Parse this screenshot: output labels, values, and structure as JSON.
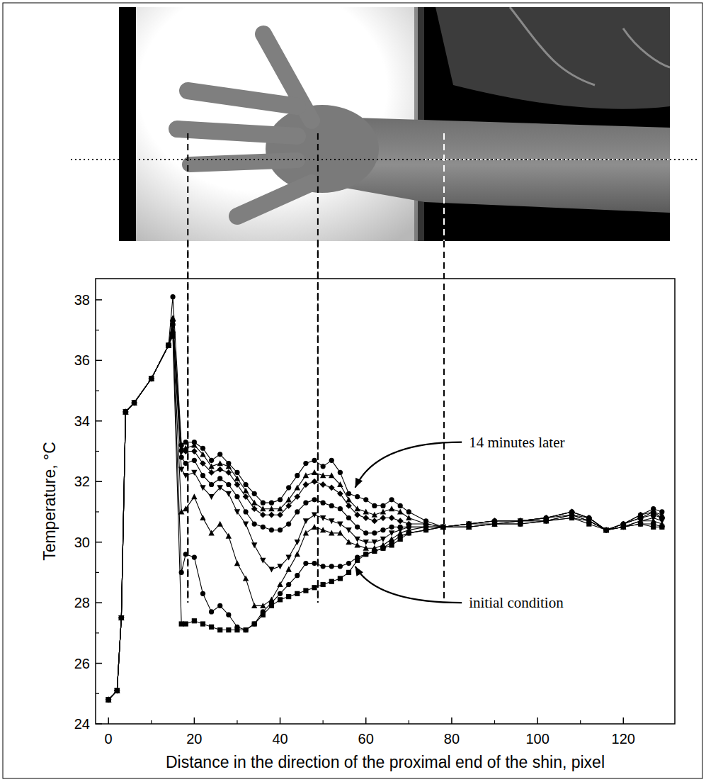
{
  "chart_data": {
    "type": "line",
    "x_label": "Distance in the direction of the proximal end of the shin, pixel",
    "y_label": "Temperature, °C",
    "x": [
      0,
      2,
      3,
      4,
      6,
      10,
      14,
      15,
      17,
      18,
      20,
      22,
      24,
      26,
      28,
      30,
      32,
      34,
      36,
      38,
      40,
      42,
      44,
      46,
      48,
      50,
      52,
      54,
      56,
      58,
      60,
      62,
      64,
      66,
      68,
      70,
      74,
      78,
      84,
      90,
      96,
      102,
      108,
      112,
      116,
      120,
      124,
      127,
      129
    ],
    "series": [
      {
        "color": "#000000",
        "marker": "square",
        "values": [
          24.8,
          25.1,
          27.5,
          34.3,
          34.6,
          35.4,
          36.5,
          36.8,
          27.3,
          27.3,
          27.4,
          27.3,
          27.2,
          27.1,
          27.1,
          27.1,
          27.1,
          27.3,
          27.6,
          27.9,
          28.1,
          28.2,
          28.3,
          28.4,
          28.5,
          28.6,
          28.7,
          28.8,
          29.0,
          29.4,
          29.6,
          29.7,
          29.8,
          29.9,
          30.1,
          30.3,
          30.4,
          30.5,
          30.5,
          30.6,
          30.6,
          30.7,
          30.8,
          30.6,
          30.4,
          30.5,
          30.6,
          30.5,
          30.5
        ]
      },
      {
        "color": "#000000",
        "marker": "circle",
        "values": [
          24.8,
          25.1,
          27.5,
          34.3,
          34.6,
          35.4,
          36.5,
          36.9,
          29.0,
          29.6,
          29.5,
          28.3,
          27.7,
          27.9,
          27.6,
          27.2,
          27.1,
          27.3,
          27.7,
          28.0,
          28.3,
          28.6,
          28.9,
          29.3,
          29.3,
          29.2,
          29.2,
          29.2,
          29.3,
          29.5,
          29.6,
          29.7,
          29.8,
          30.0,
          30.2,
          30.3,
          30.4,
          30.5,
          30.5,
          30.6,
          30.6,
          30.7,
          30.8,
          30.7,
          30.4,
          30.5,
          30.6,
          30.6,
          30.5
        ]
      },
      {
        "color": "#000000",
        "marker": "triangle-up",
        "values": [
          24.8,
          25.1,
          27.5,
          34.3,
          34.6,
          35.4,
          36.5,
          37.0,
          31.0,
          31.1,
          31.5,
          30.8,
          30.3,
          30.6,
          30.2,
          29.3,
          28.8,
          27.9,
          27.9,
          28.1,
          28.6,
          29.1,
          29.6,
          30.3,
          30.5,
          30.4,
          30.3,
          30.3,
          30.0,
          29.9,
          29.8,
          29.8,
          29.9,
          30.1,
          30.3,
          30.4,
          30.5,
          30.5,
          30.5,
          30.6,
          30.7,
          30.7,
          30.9,
          30.7,
          30.4,
          30.5,
          30.7,
          30.7,
          30.6
        ]
      },
      {
        "color": "#000000",
        "marker": "triangle-down",
        "values": [
          24.8,
          25.1,
          27.5,
          34.3,
          34.6,
          35.4,
          36.5,
          37.1,
          32.4,
          32.2,
          32.3,
          31.8,
          31.5,
          31.8,
          31.6,
          31.0,
          30.6,
          29.9,
          29.4,
          29.1,
          29.2,
          29.5,
          30.0,
          30.7,
          30.9,
          30.8,
          30.7,
          30.6,
          30.4,
          30.1,
          30.0,
          30.0,
          30.1,
          30.3,
          30.4,
          30.5,
          30.5,
          30.5,
          30.6,
          30.6,
          30.7,
          30.7,
          30.9,
          30.7,
          30.4,
          30.5,
          30.7,
          30.8,
          30.7
        ]
      },
      {
        "color": "#000000",
        "marker": "circle",
        "values": [
          24.8,
          25.1,
          27.5,
          34.3,
          34.6,
          35.4,
          36.5,
          37.2,
          32.8,
          32.6,
          32.7,
          32.2,
          31.9,
          32.1,
          31.9,
          31.5,
          31.0,
          30.6,
          30.5,
          30.4,
          30.4,
          30.6,
          31.0,
          31.3,
          31.4,
          31.3,
          31.2,
          31.1,
          30.8,
          30.5,
          30.3,
          30.3,
          30.4,
          30.5,
          30.5,
          30.5,
          30.5,
          30.5,
          30.6,
          30.7,
          30.7,
          30.8,
          30.9,
          30.8,
          30.4,
          30.6,
          30.8,
          30.9,
          30.8
        ]
      },
      {
        "color": "#000000",
        "marker": "diamond",
        "values": [
          24.8,
          25.1,
          27.5,
          34.3,
          34.6,
          35.4,
          36.5,
          37.3,
          33.0,
          33.0,
          33.0,
          32.6,
          32.3,
          32.4,
          32.3,
          31.9,
          31.5,
          31.1,
          30.9,
          30.9,
          30.9,
          31.2,
          31.5,
          31.9,
          32.0,
          31.9,
          31.8,
          31.6,
          31.2,
          30.9,
          30.8,
          30.7,
          30.8,
          30.8,
          30.7,
          30.6,
          30.6,
          30.5,
          30.6,
          30.7,
          30.7,
          30.8,
          31.0,
          30.8,
          30.4,
          30.6,
          30.8,
          31.0,
          30.8
        ]
      },
      {
        "color": "#000000",
        "marker": "triangle-up",
        "values": [
          24.8,
          25.1,
          27.5,
          34.3,
          34.6,
          35.4,
          36.5,
          37.4,
          33.1,
          33.1,
          33.2,
          32.9,
          32.5,
          32.6,
          32.5,
          32.1,
          31.7,
          31.3,
          31.1,
          31.1,
          31.1,
          31.4,
          31.8,
          32.2,
          32.3,
          32.2,
          32.2,
          31.9,
          31.4,
          31.1,
          31.0,
          30.9,
          31.0,
          31.1,
          31.0,
          30.8,
          30.6,
          30.5,
          30.6,
          30.7,
          30.7,
          30.8,
          31.0,
          30.8,
          30.4,
          30.6,
          30.9,
          31.0,
          30.9
        ]
      },
      {
        "color": "#000000",
        "marker": "circle",
        "values": [
          24.8,
          25.1,
          27.5,
          34.3,
          34.6,
          35.4,
          36.5,
          38.1,
          33.2,
          33.3,
          33.3,
          33.1,
          32.7,
          32.9,
          32.6,
          32.3,
          31.9,
          31.6,
          31.3,
          31.3,
          31.4,
          31.8,
          32.2,
          32.6,
          32.7,
          32.5,
          32.7,
          32.3,
          31.6,
          31.5,
          31.4,
          31.2,
          31.2,
          31.4,
          31.2,
          31.0,
          30.7,
          30.5,
          30.6,
          30.7,
          30.7,
          30.8,
          31.0,
          30.8,
          30.4,
          30.6,
          30.9,
          31.1,
          31.0
        ]
      }
    ],
    "xlim": [
      -3,
      132
    ],
    "ylim": [
      24,
      38.7
    ],
    "xticks": [
      0,
      20,
      40,
      60,
      80,
      100,
      120
    ],
    "yticks": [
      24,
      26,
      28,
      30,
      32,
      34,
      36,
      38
    ],
    "vlines": [
      18.5,
      48.8,
      78.2
    ],
    "annotations": [
      {
        "text": "14 minutes later",
        "x": 84,
        "y": 33.3,
        "target_x": 57.5,
        "target_y": 31.8
      },
      {
        "text": "initial condition",
        "x": 84,
        "y": 28.0,
        "target_x": 57.5,
        "target_y": 29.2
      }
    ],
    "grid": false
  }
}
